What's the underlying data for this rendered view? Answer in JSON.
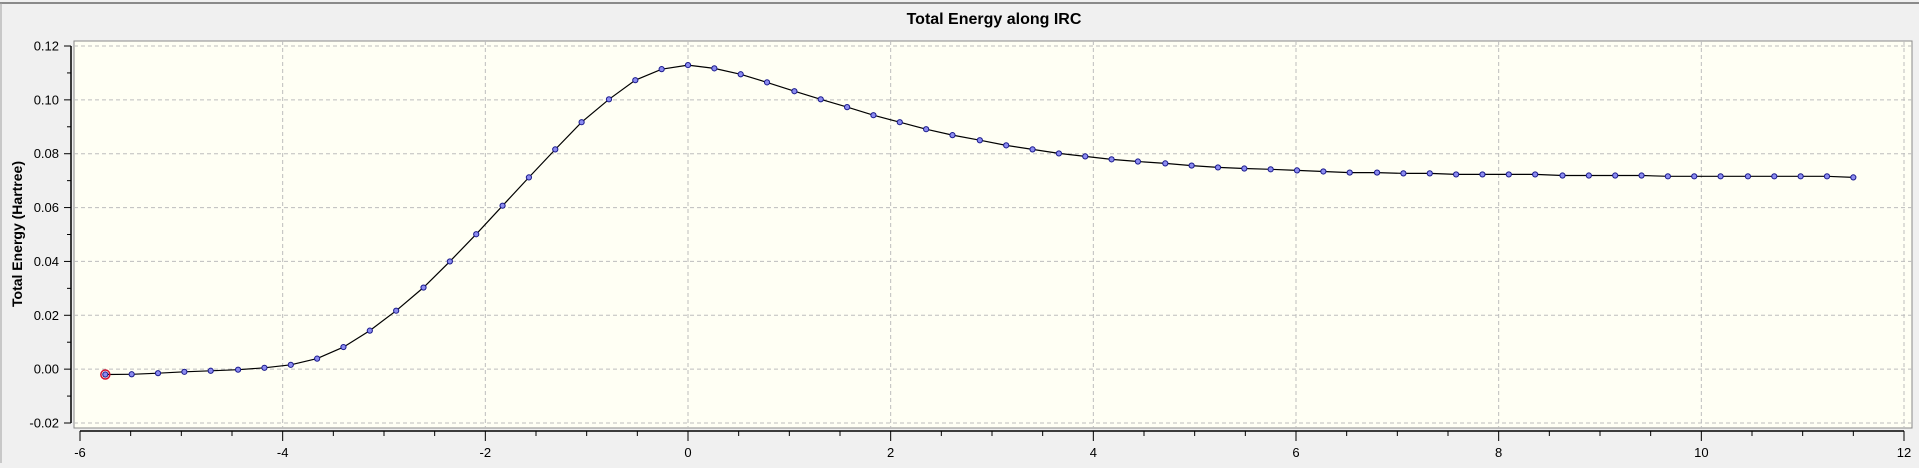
{
  "chart_data": {
    "type": "line",
    "title": "Total Energy along IRC",
    "xlabel": "",
    "ylabel": "Total Energy (Hartree)",
    "xlim": [
      -6,
      12
    ],
    "ylim": [
      -0.02,
      0.12
    ],
    "xticks": [
      "-6",
      "-4",
      "-2",
      "0",
      "2",
      "4",
      "6",
      "8",
      "10",
      "12"
    ],
    "yticks": [
      "0.12",
      "0.10",
      "0.08",
      "0.06",
      "0.04",
      "0.02",
      "0.00",
      "-0.02"
    ],
    "grid": true,
    "colors": {
      "line": "#000000",
      "marker_fill": "#8c8cf0",
      "marker_stroke": "#1a1a8c",
      "highlight": "#d01030",
      "plot_bg": "#fffff4",
      "frame_bg": "#f0f0f0"
    },
    "highlighted_point_index": 0,
    "x": [
      -5.75,
      -5.49,
      -5.23,
      -4.97,
      -4.71,
      -4.44,
      -4.18,
      -3.92,
      -3.66,
      -3.4,
      -3.14,
      -2.88,
      -2.61,
      -2.35,
      -2.09,
      -1.83,
      -1.57,
      -1.31,
      -1.05,
      -0.78,
      -0.52,
      -0.26,
      0.0,
      0.26,
      0.52,
      0.78,
      1.05,
      1.31,
      1.57,
      1.83,
      2.09,
      2.35,
      2.61,
      2.88,
      3.14,
      3.4,
      3.66,
      3.92,
      4.18,
      4.44,
      4.71,
      4.97,
      5.23,
      5.49,
      5.75,
      6.01,
      6.27,
      6.53,
      6.8,
      7.06,
      7.32,
      7.58,
      7.84,
      8.1,
      8.36,
      8.63,
      8.89,
      9.15,
      9.41,
      9.67,
      9.93,
      10.19,
      10.46,
      10.72,
      10.98,
      11.24,
      11.5
    ],
    "y": [
      -0.002,
      -0.0019,
      -0.0015,
      -0.001,
      -0.0006,
      -0.0002,
      0.0005,
      0.0016,
      0.0039,
      0.0082,
      0.0143,
      0.0217,
      0.0303,
      0.04,
      0.0501,
      0.0607,
      0.0712,
      0.0816,
      0.0917,
      0.1002,
      0.1073,
      0.1114,
      0.1129,
      0.1117,
      0.1095,
      0.1065,
      0.1032,
      0.1002,
      0.0973,
      0.0943,
      0.0917,
      0.0891,
      0.0869,
      0.085,
      0.0831,
      0.0816,
      0.0801,
      0.079,
      0.0779,
      0.0771,
      0.0764,
      0.0756,
      0.0749,
      0.0745,
      0.0742,
      0.0738,
      0.0734,
      0.073,
      0.073,
      0.0727,
      0.0727,
      0.0723,
      0.0723,
      0.0723,
      0.0723,
      0.0719,
      0.0719,
      0.0719,
      0.0719,
      0.0716,
      0.0716,
      0.0716,
      0.0716,
      0.0716,
      0.0716,
      0.0716,
      0.0712
    ]
  }
}
